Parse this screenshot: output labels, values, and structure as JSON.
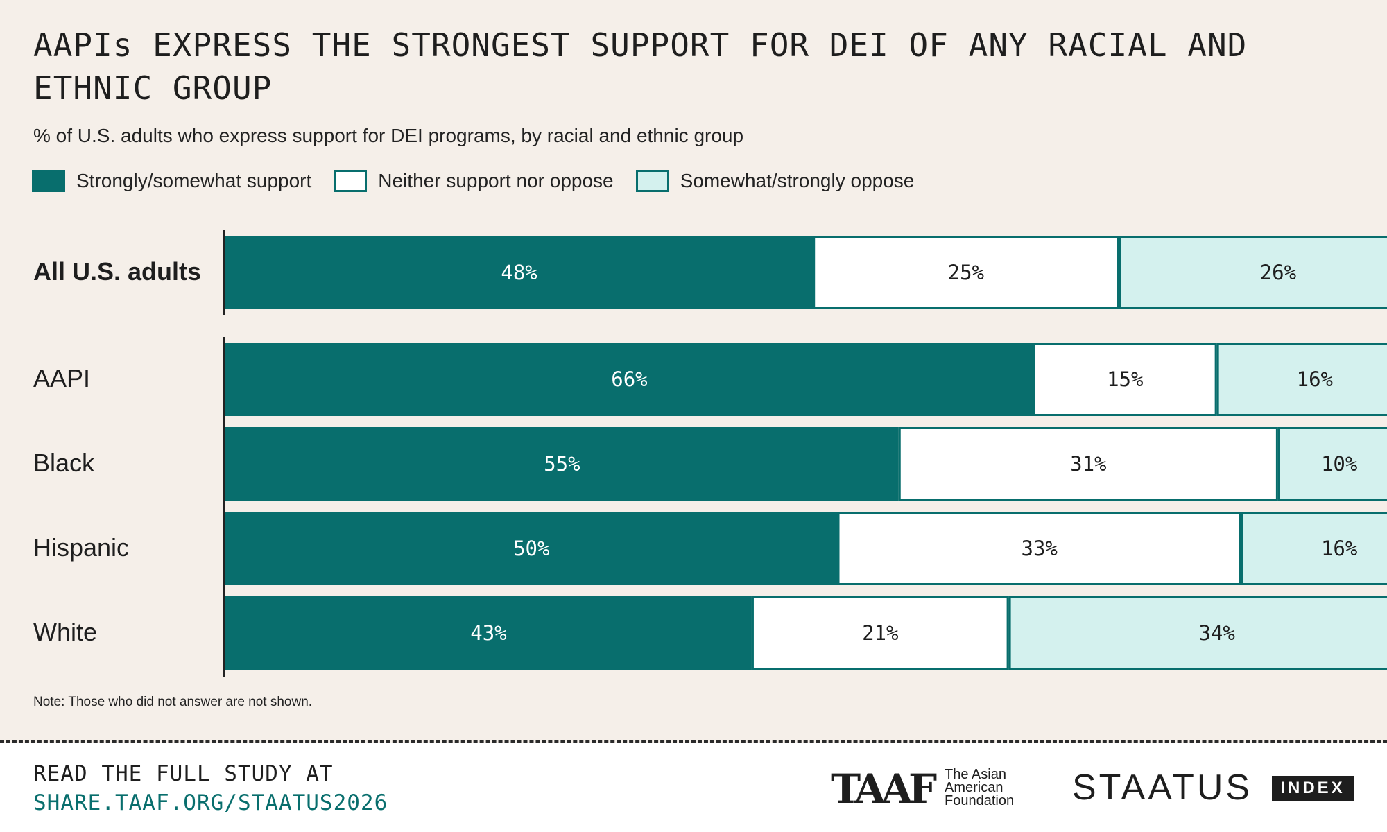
{
  "title": "AAPIs EXPRESS THE STRONGEST SUPPORT FOR DEI OF ANY RACIAL AND ETHNIC GROUP",
  "subtitle": "% of U.S. adults who express support for DEI programs, by racial and ethnic group",
  "legend": [
    {
      "label": "Strongly/somewhat support",
      "color": "#086e6d"
    },
    {
      "label": "Neither support nor oppose",
      "color": "#ffffff"
    },
    {
      "label": "Somewhat/strongly oppose",
      "color": "#d4f1ee"
    }
  ],
  "chart_data": {
    "type": "bar",
    "orientation": "horizontal",
    "stacked": true,
    "title": "AAPIs EXPRESS THE STRONGEST SUPPORT FOR DEI OF ANY RACIAL AND ETHNIC GROUP",
    "subtitle": "% of U.S. adults who express support for DEI programs, by racial and ethnic group",
    "categories": [
      "All U.S. adults",
      "AAPI",
      "Black",
      "Hispanic",
      "White"
    ],
    "series": [
      {
        "name": "Strongly/somewhat support",
        "values": [
          48,
          66,
          55,
          50,
          43
        ]
      },
      {
        "name": "Neither support nor oppose",
        "values": [
          25,
          15,
          31,
          33,
          21
        ]
      },
      {
        "name": "Somewhat/strongly oppose",
        "values": [
          26,
          16,
          10,
          16,
          34
        ]
      }
    ],
    "value_suffix": "%",
    "xlim": [
      0,
      100
    ],
    "xlabel": "",
    "ylabel": "",
    "legend_position": "top-left"
  },
  "note": "Note: Those who did not answer are not shown.",
  "footer": {
    "cta_line1": "READ THE FULL STUDY AT",
    "cta_line2": "SHARE.TAAF.ORG/STAATUS2026",
    "taaf_logo": "TAAF",
    "taaf_name": "The Asian American Foundation",
    "staatus_logo": "STAATUS",
    "index_badge": "INDEX"
  },
  "colors": {
    "support": "#086e6d",
    "neither": "#ffffff",
    "oppose": "#d4f1ee",
    "border": "#086e6d",
    "axis": "#222222",
    "label_dark": "#1e1e1e",
    "label_light": "#ffffff"
  }
}
